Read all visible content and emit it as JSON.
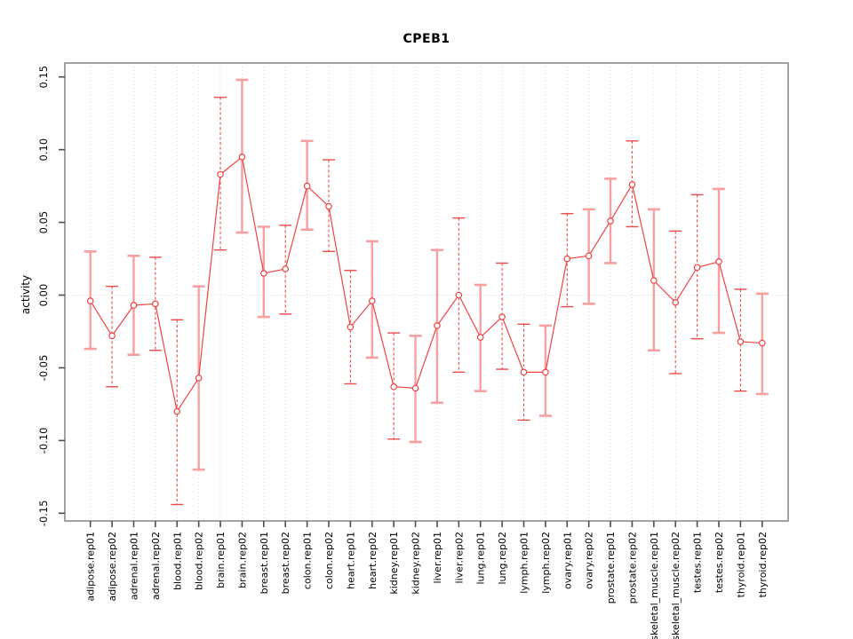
{
  "page": {
    "background": "#ffffff"
  },
  "chart_data": {
    "type": "line",
    "title": "CPEB1",
    "xlabel": "",
    "ylabel": "activity",
    "ylim": [
      -0.15,
      0.15
    ],
    "yticks": [
      -0.15,
      -0.1,
      -0.05,
      0.0,
      0.05,
      0.1,
      0.15
    ],
    "ytick_labels": [
      "-0.15",
      "-0.10",
      "-0.05",
      "0.00",
      "0.05",
      "0.10",
      "0.15"
    ],
    "grid": "vertical dotted gridline per category plus dotted horizontal line at 0",
    "legend_position": "none",
    "marker": "open-circle",
    "categories": [
      "adipose.rep01",
      "adipose.rep02",
      "adrenal.rep01",
      "adrenal.rep02",
      "blood.rep01",
      "blood.rep02",
      "brain.rep01",
      "brain.rep02",
      "breast.rep01",
      "breast.rep02",
      "colon.rep01",
      "colon.rep02",
      "heart.rep01",
      "heart.rep02",
      "kidney.rep01",
      "kidney.rep02",
      "liver.rep01",
      "liver.rep02",
      "lung.rep01",
      "lung.rep02",
      "lymph.rep01",
      "lymph.rep02",
      "ovary.rep01",
      "ovary.rep02",
      "prostate.rep01",
      "prostate.rep02",
      "skeletal_muscle.rep01",
      "skeletal_muscle.rep02",
      "testes.rep01",
      "testes.rep02",
      "thyroid.rep01",
      "thyroid.rep02"
    ],
    "series": [
      {
        "name": "activity",
        "values": [
          -0.004,
          -0.028,
          -0.007,
          -0.006,
          -0.08,
          -0.057,
          0.083,
          0.095,
          0.015,
          0.018,
          0.075,
          0.061,
          -0.022,
          -0.004,
          -0.063,
          -0.064,
          -0.021,
          0.0,
          -0.029,
          -0.015,
          -0.053,
          -0.053,
          0.025,
          0.027,
          0.051,
          0.076,
          0.01,
          -0.005,
          0.019,
          0.023,
          -0.032,
          -0.033
        ],
        "error_high": [
          0.03,
          0.006,
          0.027,
          0.026,
          -0.017,
          0.006,
          0.136,
          0.148,
          0.047,
          0.048,
          0.106,
          0.093,
          0.017,
          0.037,
          -0.026,
          -0.028,
          0.031,
          0.053,
          0.007,
          0.022,
          -0.02,
          -0.021,
          0.056,
          0.059,
          0.08,
          0.106,
          0.059,
          0.044,
          0.069,
          0.073,
          0.004,
          0.001
        ],
        "error_low": [
          -0.037,
          -0.063,
          -0.041,
          -0.038,
          -0.144,
          -0.12,
          0.031,
          0.043,
          -0.015,
          -0.013,
          0.045,
          0.03,
          -0.061,
          -0.043,
          -0.099,
          -0.101,
          -0.074,
          -0.053,
          -0.066,
          -0.051,
          -0.086,
          -0.083,
          -0.008,
          -0.006,
          0.022,
          0.047,
          -0.038,
          -0.054,
          -0.03,
          -0.026,
          -0.066,
          -0.068
        ],
        "error_bar_styles": [
          "solid",
          "dashed",
          "solid",
          "dashed",
          "dashed",
          "solid",
          "dashed",
          "solid",
          "solid",
          "dashed",
          "solid",
          "dashed",
          "dashed",
          "solid",
          "dashed",
          "solid",
          "solid",
          "dashed",
          "solid",
          "dashed",
          "dashed",
          "solid",
          "dashed",
          "solid",
          "solid",
          "dashed",
          "solid",
          "dashed",
          "dashed",
          "solid",
          "dashed",
          "solid"
        ]
      }
    ],
    "colors": {
      "line": "#ef4343",
      "marker_stroke": "#ef4343",
      "marker_fill": "#ffffff",
      "error_solid": "#f8a0a0",
      "error_dashed": "#ee4b4b",
      "error_cap": "#f8a0a0",
      "grid": "#d9d9d9",
      "box": "#8c8c8c",
      "tick": "#4d4d4d",
      "text": "#000000"
    }
  }
}
